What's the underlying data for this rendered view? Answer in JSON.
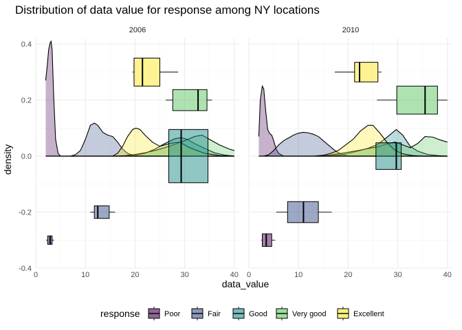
{
  "chart_data": {
    "type": "density+boxplot",
    "title": "Distribution of data value for response among NY locations",
    "xlabel": "data_value",
    "ylabel": "density",
    "xlim": [
      0,
      41
    ],
    "ylim": [
      -0.4,
      0.42
    ],
    "x_ticks": [
      0,
      10,
      20,
      30,
      40
    ],
    "y_ticks": [
      0.4,
      0.2,
      0.0,
      -0.2,
      -0.4
    ],
    "y_tick_labels": [
      "0.4",
      "0.2",
      "0.0",
      "-0.2",
      "-0.4"
    ],
    "grid": true,
    "legend": {
      "title": "response",
      "position": "bottom",
      "entries": [
        "Poor",
        "Fair",
        "Good",
        "Very good",
        "Excellent"
      ]
    },
    "colors": {
      "Poor": "#440154",
      "Fair": "#3b528b",
      "Good": "#21908c",
      "Very good": "#5dc863",
      "Excellent": "#fde725"
    },
    "fill_opacity": {
      "density": 0.3,
      "box": 0.5
    },
    "panels": [
      {
        "strip": "2006",
        "boxplots": [
          {
            "response": "Poor",
            "y": -0.3,
            "whisker_low": 2.1,
            "q1": 2.4,
            "median": 2.9,
            "q3": 3.3,
            "whisker_high": 3.7,
            "height": 0.03
          },
          {
            "response": "Fair",
            "y": -0.2,
            "whisker_low": 11.0,
            "q1": 11.8,
            "median": 12.5,
            "q3": 14.8,
            "whisker_high": 16.0,
            "height": 0.045
          },
          {
            "response": "Good",
            "y": 0.0,
            "whisker_low": 26.5,
            "q1": 26.8,
            "median": 29.3,
            "q3": 34.7,
            "whisker_high": 35.0,
            "height": 0.19
          },
          {
            "response": "Very good",
            "y": 0.2,
            "whisker_low": 26.2,
            "q1": 27.6,
            "median": 32.7,
            "q3": 34.5,
            "whisker_high": 35.5,
            "height": 0.075
          },
          {
            "response": "Excellent",
            "y": 0.3,
            "whisker_low": 19.5,
            "q1": 19.8,
            "median": 21.5,
            "q3": 25.0,
            "whisker_high": 28.7,
            "height": 0.1
          }
        ],
        "densities": [
          {
            "response": "Poor",
            "x": [
              2.0,
              2.3,
              2.6,
              2.9,
              3.1,
              3.3,
              3.6,
              4.0,
              4.5,
              5.0,
              40.0
            ],
            "y": [
              0.27,
              0.32,
              0.38,
              0.405,
              0.41,
              0.38,
              0.22,
              0.06,
              0.01,
              0.0,
              0.0
            ]
          },
          {
            "response": "Fair",
            "x": [
              7.0,
              8.0,
              9.0,
              10.0,
              11.0,
              11.8,
              12.5,
              13.5,
              14.5,
              15.5,
              16.5,
              17.5,
              18.5,
              20.0,
              40.0
            ],
            "y": [
              0.0,
              0.005,
              0.02,
              0.06,
              0.11,
              0.118,
              0.11,
              0.085,
              0.075,
              0.07,
              0.05,
              0.025,
              0.01,
              0.0,
              0.0
            ]
          },
          {
            "response": "Good",
            "x": [
              18.0,
              20.0,
              22.0,
              24.0,
              26.0,
              28.0,
              29.3,
              30.5,
              32.0,
              34.0,
              36.0,
              38.0,
              40.0
            ],
            "y": [
              0.0,
              0.003,
              0.01,
              0.025,
              0.045,
              0.062,
              0.066,
              0.06,
              0.045,
              0.028,
              0.012,
              0.004,
              0.0
            ]
          },
          {
            "response": "Very good",
            "x": [
              16.0,
              18.0,
              20.0,
              22.0,
              24.0,
              26.0,
              28.0,
              30.0,
              32.0,
              33.5,
              35.0,
              37.0,
              39.0,
              40.0
            ],
            "y": [
              0.0,
              0.002,
              0.006,
              0.012,
              0.02,
              0.03,
              0.042,
              0.055,
              0.07,
              0.075,
              0.06,
              0.04,
              0.025,
              0.02
            ]
          },
          {
            "response": "Excellent",
            "x": [
              15.5,
              16.5,
              17.5,
              18.5,
              19.5,
              20.2,
              21.0,
              22.0,
              23.5,
              25.0,
              27.0,
              29.0,
              31.0,
              34.0,
              37.0,
              40.0
            ],
            "y": [
              0.0,
              0.01,
              0.035,
              0.07,
              0.095,
              0.1,
              0.095,
              0.075,
              0.05,
              0.035,
              0.045,
              0.05,
              0.03,
              0.01,
              0.002,
              0.0
            ]
          }
        ]
      },
      {
        "strip": "2010",
        "boxplots": [
          {
            "response": "Poor",
            "y": -0.3,
            "whisker_low": 2.5,
            "q1": 2.7,
            "median": 3.5,
            "q3": 4.6,
            "whisker_high": 5.3,
            "height": 0.045
          },
          {
            "response": "Fair",
            "y": -0.2,
            "whisker_low": 5.5,
            "q1": 7.8,
            "median": 11.0,
            "q3": 14.0,
            "whisker_high": 16.7,
            "height": 0.075
          },
          {
            "response": "Good",
            "y": 0.0,
            "whisker_low": 25.5,
            "q1": 25.6,
            "median": 29.7,
            "q3": 30.7,
            "whisker_high": 30.8,
            "height": 0.095
          },
          {
            "response": "Very good",
            "y": 0.2,
            "whisker_low": 25.8,
            "q1": 29.8,
            "median": 35.5,
            "q3": 38.0,
            "whisker_high": 40.0,
            "height": 0.1
          },
          {
            "response": "Excellent",
            "y": 0.3,
            "whisker_low": 17.3,
            "q1": 21.3,
            "median": 22.3,
            "q3": 26.0,
            "whisker_high": 26.7,
            "height": 0.07
          }
        ],
        "densities": [
          {
            "response": "Poor",
            "x": [
              2.0,
              2.3,
              2.7,
              3.0,
              3.4,
              3.8,
              4.2,
              4.6,
              5.0,
              5.5,
              6.0,
              7.0,
              40.0
            ],
            "y": [
              0.07,
              0.2,
              0.25,
              0.24,
              0.16,
              0.095,
              0.08,
              0.075,
              0.055,
              0.025,
              0.01,
              0.0,
              0.0
            ]
          },
          {
            "response": "Fair",
            "x": [
              3.0,
              4.0,
              5.0,
              6.0,
              7.0,
              8.0,
              9.0,
              10.0,
              11.0,
              12.0,
              13.0,
              14.0,
              15.0,
              16.0,
              17.0,
              18.0,
              19.0,
              20.0,
              40.0
            ],
            "y": [
              0.0,
              0.005,
              0.02,
              0.04,
              0.055,
              0.065,
              0.075,
              0.082,
              0.085,
              0.083,
              0.078,
              0.07,
              0.055,
              0.04,
              0.025,
              0.012,
              0.005,
              0.0,
              0.0
            ]
          },
          {
            "response": "Good",
            "x": [
              16.0,
              18.0,
              20.0,
              22.0,
              24.0,
              26.0,
              28.0,
              29.7,
              31.0,
              32.5,
              34.0,
              36.0,
              38.0,
              40.0
            ],
            "y": [
              0.0,
              0.003,
              0.01,
              0.018,
              0.028,
              0.042,
              0.07,
              0.095,
              0.075,
              0.035,
              0.018,
              0.006,
              0.002,
              0.0
            ]
          },
          {
            "response": "Very good",
            "x": [
              14.0,
              16.0,
              18.0,
              20.0,
              22.0,
              24.0,
              26.0,
              28.0,
              29.5,
              31.0,
              32.5,
              34.0,
              35.5,
              37.0,
              38.5,
              40.0
            ],
            "y": [
              0.0,
              0.003,
              0.008,
              0.014,
              0.02,
              0.027,
              0.033,
              0.045,
              0.05,
              0.04,
              0.03,
              0.045,
              0.07,
              0.068,
              0.058,
              0.05
            ]
          },
          {
            "response": "Excellent",
            "x": [
              13.0,
              15.0,
              16.5,
              18.0,
              19.5,
              21.0,
              22.5,
              24.0,
              25.0,
              26.5,
              28.0,
              29.5,
              31.0,
              33.0,
              35.0,
              37.0
            ],
            "y": [
              0.0,
              0.003,
              0.01,
              0.02,
              0.04,
              0.06,
              0.09,
              0.11,
              0.11,
              0.08,
              0.045,
              0.02,
              0.008,
              0.002,
              0.0,
              0.0
            ]
          }
        ]
      }
    ]
  }
}
